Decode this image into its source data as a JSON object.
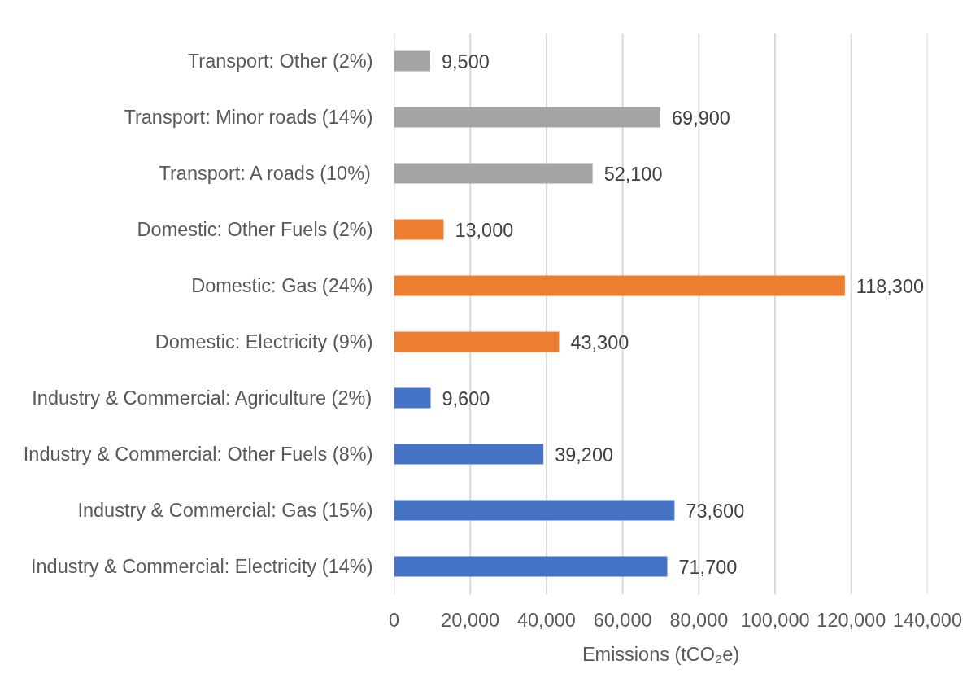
{
  "chart_data": {
    "type": "bar",
    "orientation": "horizontal",
    "categories": [
      "Transport: Other (2%)",
      "Transport: Minor roads (14%)",
      "Transport: A roads (10%)",
      "Domestic: Other Fuels (2%)",
      "Domestic: Gas (24%)",
      "Domestic: Electricity (9%)",
      "Industry & Commercial: Agriculture (2%)",
      "Industry & Commercial: Other Fuels (8%)",
      "Industry & Commercial: Gas (15%)",
      "Industry & Commercial: Electricity (14%)"
    ],
    "values": [
      9500,
      69900,
      52100,
      13000,
      118300,
      43300,
      9600,
      39200,
      73600,
      71700
    ],
    "colors": [
      "#a5a5a5",
      "#a5a5a5",
      "#a5a5a5",
      "#ed7d31",
      "#ed7d31",
      "#ed7d31",
      "#4472c4",
      "#4472c4",
      "#4472c4",
      "#4472c4"
    ],
    "value_labels": [
      "9,500",
      "69,900",
      "52,100",
      "13,000",
      "118,300",
      "43,300",
      "9,600",
      "39,200",
      "73,600",
      "71,700"
    ],
    "xlabel": "Emissions (tCO₂e)",
    "xlim": [
      0,
      140000
    ],
    "xticks": [
      0,
      {
        "value": 20000,
        "label": "20,000"
      },
      {
        "value": 40000,
        "label": "40,000"
      },
      {
        "value": 60000,
        "label": "60,000"
      },
      {
        "value": 80000,
        "label": "80,000"
      },
      {
        "value": 100000,
        "label": "100,000"
      },
      {
        "value": 120000,
        "label": "120,000"
      },
      {
        "value": 140000,
        "label": "140,000"
      }
    ],
    "grid": "x"
  }
}
